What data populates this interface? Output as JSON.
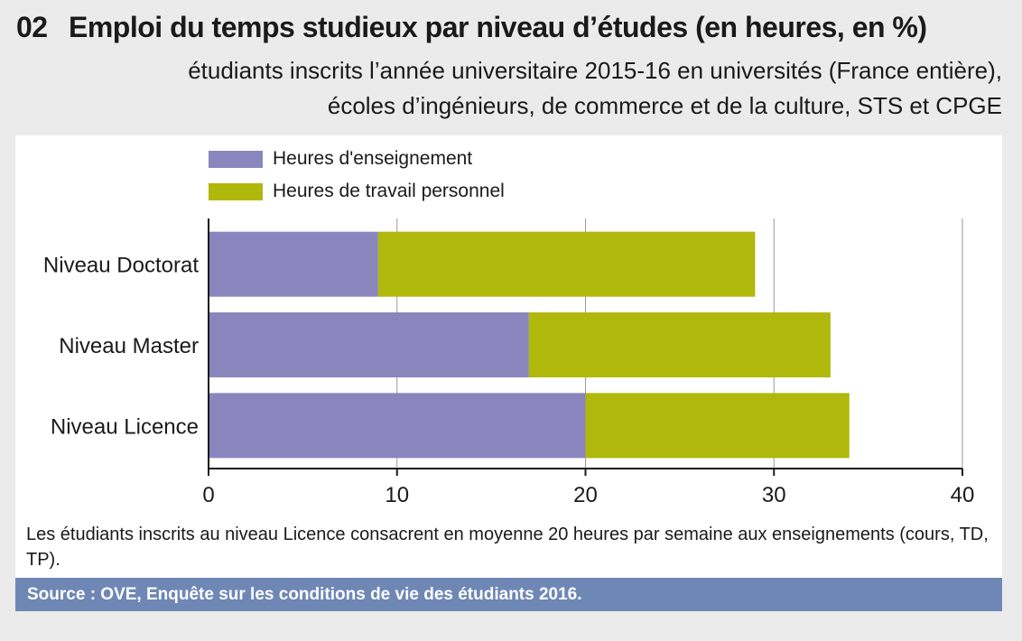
{
  "header": {
    "number": "02",
    "title": "Emploi du temps studieux par niveau d’études (en heures, en %)",
    "subtitle_line1": "étudiants inscrits l’année universitaire 2015-16 en universités (France entière),",
    "subtitle_line2": "écoles d’ingénieurs, de commerce et de la culture, STS et CPGE"
  },
  "colors": {
    "enseignement": "#8a86bd",
    "travail": "#b0b80c",
    "source_bar": "#6f87b5",
    "background": "#ebebeb"
  },
  "chart_data": {
    "type": "bar",
    "orientation": "horizontal",
    "stacked": true,
    "categories": [
      "Niveau Doctorat",
      "Niveau Master",
      "Niveau Licence"
    ],
    "series": [
      {
        "name": "Heures d'enseignement",
        "values": [
          9,
          17,
          20
        ]
      },
      {
        "name": "Heures de travail personnel",
        "values": [
          20,
          16,
          14
        ]
      }
    ],
    "xlim": [
      0,
      40
    ],
    "xticks": [
      "0",
      "10",
      "20",
      "30",
      "40"
    ],
    "grid": true,
    "legend_position": "top-left"
  },
  "note": "Les étudiants inscrits au niveau Licence consacrent en moyenne 20 heures par semaine aux enseignements (cours, TD, TP).",
  "source": "Source : OVE, Enquête sur les conditions de vie des étudiants 2016."
}
